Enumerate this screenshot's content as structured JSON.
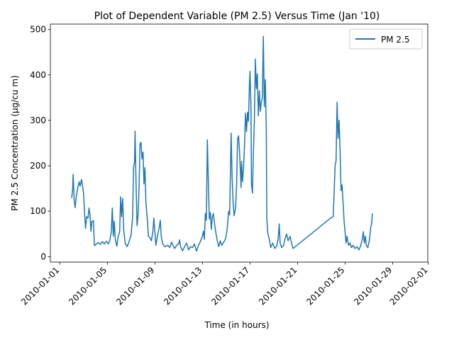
{
  "chart_data": {
    "type": "line",
    "title": "Plot of Dependent Variable (PM 2.5) Versus Time (Jan '10)",
    "xlabel": "Time (in hours)",
    "ylabel": "PM 2.5 Concentration (µg/cu m)",
    "xlim": [
      "2009-12-31T05:00",
      "2010-01-31T23:00"
    ],
    "ylim": [
      -12,
      512
    ],
    "x_ticks": [
      "2010-01-01",
      "2010-01-05",
      "2010-01-09",
      "2010-01-13",
      "2010-01-17",
      "2010-01-21",
      "2010-01-25",
      "2010-01-29",
      "2010-02-01"
    ],
    "y_ticks": [
      0,
      100,
      200,
      300,
      400,
      500
    ],
    "legend": {
      "position": "top-right"
    },
    "grid": false,
    "series": [
      {
        "name": "PM 2.5",
        "color": "#1f77b4",
        "points": [
          [
            "2010-01-02T00:00",
            129
          ],
          [
            "2010-01-02T02:00",
            148
          ],
          [
            "2010-01-02T03:00",
            181
          ],
          [
            "2010-01-02T05:00",
            125
          ],
          [
            "2010-01-02T07:00",
            108
          ],
          [
            "2010-01-02T09:00",
            130
          ],
          [
            "2010-01-02T12:00",
            150
          ],
          [
            "2010-01-02T15:00",
            165
          ],
          [
            "2010-01-02T17:00",
            155
          ],
          [
            "2010-01-02T20:00",
            170
          ],
          [
            "2010-01-03T00:00",
            140
          ],
          [
            "2010-01-03T02:00",
            96
          ],
          [
            "2010-01-03T04:00",
            62
          ],
          [
            "2010-01-03T06:00",
            88
          ],
          [
            "2010-01-03T09:00",
            85
          ],
          [
            "2010-01-03T11:00",
            107
          ],
          [
            "2010-01-03T13:00",
            92
          ],
          [
            "2010-01-03T15:00",
            56
          ],
          [
            "2010-01-03T17:00",
            78
          ],
          [
            "2010-01-03T20:00",
            79
          ],
          [
            "2010-01-03T22:00",
            24
          ],
          [
            "2010-01-04T02:00",
            28
          ],
          [
            "2010-01-04T06:00",
            31
          ],
          [
            "2010-01-04T10:00",
            27
          ],
          [
            "2010-01-04T14:00",
            33
          ],
          [
            "2010-01-04T18:00",
            28
          ],
          [
            "2010-01-04T22:00",
            34
          ],
          [
            "2010-01-05T02:00",
            28
          ],
          [
            "2010-01-05T05:00",
            36
          ],
          [
            "2010-01-05T08:00",
            55
          ],
          [
            "2010-01-05T10:00",
            107
          ],
          [
            "2010-01-05T12:00",
            45
          ],
          [
            "2010-01-05T14:00",
            78
          ],
          [
            "2010-01-05T16:00",
            38
          ],
          [
            "2010-01-05T19:00",
            23
          ],
          [
            "2010-01-05T22:00",
            44
          ],
          [
            "2010-01-06T01:00",
            55
          ],
          [
            "2010-01-06T03:00",
            132
          ],
          [
            "2010-01-06T05:00",
            88
          ],
          [
            "2010-01-06T07:00",
            128
          ],
          [
            "2010-01-06T09:00",
            60
          ],
          [
            "2010-01-06T12:00",
            30
          ],
          [
            "2010-01-06T16:00",
            22
          ],
          [
            "2010-01-06T20:00",
            33
          ],
          [
            "2010-01-07T00:00",
            48
          ],
          [
            "2010-01-07T03:00",
            85
          ],
          [
            "2010-01-07T05:00",
            195
          ],
          [
            "2010-01-07T07:00",
            209
          ],
          [
            "2010-01-07T08:00",
            276
          ],
          [
            "2010-01-07T10:00",
            160
          ],
          [
            "2010-01-07T12:00",
            68
          ],
          [
            "2010-01-07T14:00",
            90
          ],
          [
            "2010-01-07T16:00",
            150
          ],
          [
            "2010-01-07T18:00",
            248
          ],
          [
            "2010-01-07T20:00",
            252
          ],
          [
            "2010-01-07T22:00",
            215
          ],
          [
            "2010-01-08T00:00",
            230
          ],
          [
            "2010-01-08T02:00",
            160
          ],
          [
            "2010-01-08T04:00",
            196
          ],
          [
            "2010-01-08T06:00",
            120
          ],
          [
            "2010-01-08T09:00",
            80
          ],
          [
            "2010-01-08T11:00",
            45
          ],
          [
            "2010-01-08T14:00",
            42
          ],
          [
            "2010-01-08T17:00",
            35
          ],
          [
            "2010-01-08T20:00",
            55
          ],
          [
            "2010-01-08T22:00",
            85
          ],
          [
            "2010-01-09T02:00",
            25
          ],
          [
            "2010-01-09T06:00",
            50
          ],
          [
            "2010-01-09T09:00",
            65
          ],
          [
            "2010-01-09T11:00",
            80
          ],
          [
            "2010-01-09T13:00",
            43
          ],
          [
            "2010-01-09T16:00",
            28
          ],
          [
            "2010-01-09T20:00",
            22
          ],
          [
            "2010-01-10T02:00",
            25
          ],
          [
            "2010-01-10T06:00",
            20
          ],
          [
            "2010-01-10T10:00",
            32
          ],
          [
            "2010-01-10T13:00",
            24
          ],
          [
            "2010-01-10T16:00",
            18
          ],
          [
            "2010-01-10T20:00",
            25
          ],
          [
            "2010-01-11T00:00",
            28
          ],
          [
            "2010-01-11T02:00",
            37
          ],
          [
            "2010-01-11T04:00",
            22
          ],
          [
            "2010-01-11T08:00",
            13
          ],
          [
            "2010-01-11T12:00",
            22
          ],
          [
            "2010-01-11T16:00",
            30
          ],
          [
            "2010-01-11T20:00",
            15
          ],
          [
            "2010-01-12T00:00",
            22
          ],
          [
            "2010-01-12T04:00",
            20
          ],
          [
            "2010-01-12T08:00",
            28
          ],
          [
            "2010-01-12T12:00",
            12
          ],
          [
            "2010-01-12T16:00",
            25
          ],
          [
            "2010-01-12T20:00",
            33
          ],
          [
            "2010-01-13T00:00",
            45
          ],
          [
            "2010-01-13T02:00",
            56
          ],
          [
            "2010-01-13T04:00",
            38
          ],
          [
            "2010-01-13T06:00",
            95
          ],
          [
            "2010-01-13T08:00",
            80
          ],
          [
            "2010-01-13T10:00",
            257
          ],
          [
            "2010-01-13T12:00",
            165
          ],
          [
            "2010-01-13T14:00",
            83
          ],
          [
            "2010-01-13T16:00",
            97
          ],
          [
            "2010-01-13T18:00",
            60
          ],
          [
            "2010-01-13T20:00",
            87
          ],
          [
            "2010-01-13T22:00",
            95
          ],
          [
            "2010-01-14T02:00",
            60
          ],
          [
            "2010-01-14T06:00",
            35
          ],
          [
            "2010-01-14T09:00",
            22
          ],
          [
            "2010-01-14T12:00",
            35
          ],
          [
            "2010-01-14T15:00",
            25
          ],
          [
            "2010-01-14T19:00",
            32
          ],
          [
            "2010-01-14T23:00",
            40
          ],
          [
            "2010-01-15T02:00",
            60
          ],
          [
            "2010-01-15T05:00",
            100
          ],
          [
            "2010-01-15T07:00",
            92
          ],
          [
            "2010-01-15T09:00",
            210
          ],
          [
            "2010-01-15T10:00",
            272
          ],
          [
            "2010-01-15T12:00",
            175
          ],
          [
            "2010-01-15T14:00",
            120
          ],
          [
            "2010-01-15T16:00",
            90
          ],
          [
            "2010-01-15T19:00",
            107
          ],
          [
            "2010-01-15T21:00",
            155
          ],
          [
            "2010-01-15T23:00",
            260
          ],
          [
            "2010-01-16T01:00",
            266
          ],
          [
            "2010-01-16T03:00",
            230
          ],
          [
            "2010-01-16T05:00",
            180
          ],
          [
            "2010-01-16T06:00",
            152
          ],
          [
            "2010-01-16T07:00",
            210
          ],
          [
            "2010-01-16T09:00",
            165
          ],
          [
            "2010-01-16T11:00",
            195
          ],
          [
            "2010-01-16T13:00",
            245
          ],
          [
            "2010-01-16T15:00",
            316
          ],
          [
            "2010-01-16T17:00",
            275
          ],
          [
            "2010-01-16T19:00",
            318
          ],
          [
            "2010-01-16T21:00",
            298
          ],
          [
            "2010-01-16T23:00",
            382
          ],
          [
            "2010-01-17T00:00",
            408
          ],
          [
            "2010-01-17T02:00",
            330
          ],
          [
            "2010-01-17T03:00",
            160
          ],
          [
            "2010-01-17T05:00",
            140
          ],
          [
            "2010-01-17T07:00",
            230
          ],
          [
            "2010-01-17T09:00",
            300
          ],
          [
            "2010-01-17T11:00",
            435
          ],
          [
            "2010-01-17T13:00",
            370
          ],
          [
            "2010-01-17T15:00",
            402
          ],
          [
            "2010-01-17T17:00",
            310
          ],
          [
            "2010-01-17T19:00",
            365
          ],
          [
            "2010-01-17T21:00",
            320
          ],
          [
            "2010-01-17T23:00",
            340
          ],
          [
            "2010-01-18T01:00",
            350
          ],
          [
            "2010-01-18T03:00",
            485
          ],
          [
            "2010-01-18T05:00",
            330
          ],
          [
            "2010-01-18T07:00",
            390
          ],
          [
            "2010-01-18T09:00",
            280
          ],
          [
            "2010-01-18T10:00",
            85
          ],
          [
            "2010-01-18T12:00",
            52
          ],
          [
            "2010-01-18T15:00",
            38
          ],
          [
            "2010-01-18T18:00",
            20
          ],
          [
            "2010-01-18T22:00",
            30
          ],
          [
            "2010-01-19T02:00",
            18
          ],
          [
            "2010-01-19T06:00",
            23
          ],
          [
            "2010-01-19T09:00",
            40
          ],
          [
            "2010-01-19T11:00",
            72
          ],
          [
            "2010-01-19T13:00",
            30
          ],
          [
            "2010-01-19T16:00",
            20
          ],
          [
            "2010-01-19T20:00",
            25
          ],
          [
            "2010-01-19T23:00",
            40
          ],
          [
            "2010-01-20T02:00",
            50
          ],
          [
            "2010-01-20T05:00",
            35
          ],
          [
            "2010-01-20T09:00",
            45
          ],
          [
            "2010-01-20T12:00",
            30
          ],
          [
            "2010-01-20T15:00",
            18
          ],
          [
            "2010-01-23T20:00",
            86
          ],
          [
            "2010-01-24T00:00",
            88
          ],
          [
            "2010-01-24T02:00",
            140
          ],
          [
            "2010-01-24T04:00",
            200
          ],
          [
            "2010-01-24T06:00",
            212
          ],
          [
            "2010-01-24T08:00",
            340
          ],
          [
            "2010-01-24T10:00",
            260
          ],
          [
            "2010-01-24T12:00",
            300
          ],
          [
            "2010-01-24T14:00",
            235
          ],
          [
            "2010-01-24T16:00",
            145
          ],
          [
            "2010-01-24T18:00",
            158
          ],
          [
            "2010-01-24T20:00",
            120
          ],
          [
            "2010-01-24T22:00",
            80
          ],
          [
            "2010-01-25T00:00",
            55
          ],
          [
            "2010-01-25T02:00",
            30
          ],
          [
            "2010-01-25T04:00",
            45
          ],
          [
            "2010-01-25T07:00",
            25
          ],
          [
            "2010-01-25T10:00",
            30
          ],
          [
            "2010-01-25T13:00",
            20
          ],
          [
            "2010-01-25T16:00",
            25
          ],
          [
            "2010-01-25T20:00",
            18
          ],
          [
            "2010-01-26T00:00",
            22
          ],
          [
            "2010-01-26T04:00",
            15
          ],
          [
            "2010-01-26T08:00",
            25
          ],
          [
            "2010-01-26T11:00",
            40
          ],
          [
            "2010-01-26T13:00",
            55
          ],
          [
            "2010-01-26T15:00",
            30
          ],
          [
            "2010-01-26T17:00",
            45
          ],
          [
            "2010-01-26T19:00",
            25
          ],
          [
            "2010-01-26T22:00",
            20
          ],
          [
            "2010-01-27T01:00",
            35
          ],
          [
            "2010-01-27T04:00",
            65
          ],
          [
            "2010-01-27T06:00",
            75
          ],
          [
            "2010-01-27T07:00",
            95
          ]
        ]
      }
    ]
  }
}
